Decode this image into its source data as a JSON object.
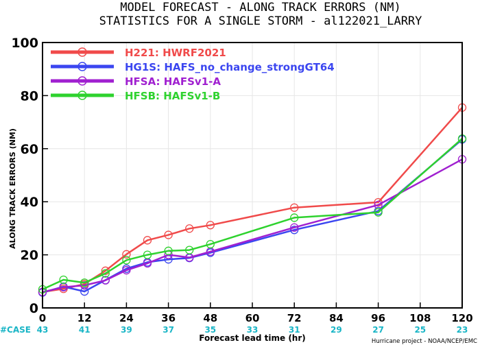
{
  "chart_data": {
    "type": "line",
    "title": "MODEL FORECAST - ALONG TRACK ERRORS (NM)",
    "subtitle": "STATISTICS FOR A SINGLE STORM - al122021_LARRY",
    "xlabel": "Forecast lead time (hr)",
    "ylabel": "ALONG TRACK ERRORS (NM)",
    "xlim": [
      0,
      120
    ],
    "ylim": [
      0,
      100
    ],
    "xticks": [
      0,
      12,
      24,
      36,
      48,
      60,
      72,
      84,
      96,
      108,
      120
    ],
    "yticks": [
      0,
      20,
      40,
      60,
      80,
      100
    ],
    "legend_position": "top-left",
    "case_label": "#CASE",
    "case_color": "#19b5c6",
    "cases": [
      {
        "x": 0,
        "n": "43"
      },
      {
        "x": 12,
        "n": "41"
      },
      {
        "x": 24,
        "n": "39"
      },
      {
        "x": 36,
        "n": "37"
      },
      {
        "x": 48,
        "n": "35"
      },
      {
        "x": 60,
        "n": "33"
      },
      {
        "x": 72,
        "n": "31"
      },
      {
        "x": 84,
        "n": "29"
      },
      {
        "x": 96,
        "n": "27"
      },
      {
        "x": 108,
        "n": "25"
      },
      {
        "x": 120,
        "n": "23"
      }
    ],
    "credit": "Hurricane project - NOAA/NCEP/EMC",
    "series": [
      {
        "name": "H221: HWRF2021",
        "color": "#f04a4a",
        "x": [
          0,
          6,
          12,
          18,
          24,
          30,
          36,
          42,
          48,
          72,
          96,
          120
        ],
        "y": [
          6.0,
          7.2,
          9.0,
          14.0,
          20.2,
          25.5,
          27.5,
          29.9,
          31.2,
          37.8,
          39.8,
          75.5
        ]
      },
      {
        "name": "HG1S: HAFS_no_change_strongGT64",
        "color": "#3b46f0",
        "x": [
          0,
          6,
          12,
          18,
          24,
          30,
          36,
          42,
          48,
          72,
          96,
          120
        ],
        "y": [
          5.8,
          8.0,
          6.2,
          10.5,
          14.8,
          17.2,
          18.3,
          18.8,
          20.8,
          29.4,
          36.5,
          63.5
        ]
      },
      {
        "name": "HFSA: HAFSv1-A",
        "color": "#a020d0",
        "x": [
          0,
          6,
          12,
          18,
          24,
          30,
          36,
          42,
          48,
          72,
          96,
          120
        ],
        "y": [
          6.0,
          7.8,
          8.5,
          10.4,
          14.2,
          16.8,
          20.0,
          19.0,
          21.2,
          30.3,
          38.8,
          56.0
        ]
      },
      {
        "name": "HFSB: HAFSv1-B",
        "color": "#2ed22e",
        "x": [
          0,
          6,
          12,
          18,
          24,
          30,
          36,
          42,
          48,
          72,
          96,
          120
        ],
        "y": [
          7.0,
          10.6,
          9.5,
          13.0,
          18.0,
          20.0,
          21.5,
          21.8,
          24.0,
          34.0,
          36.0,
          63.8
        ]
      }
    ]
  }
}
